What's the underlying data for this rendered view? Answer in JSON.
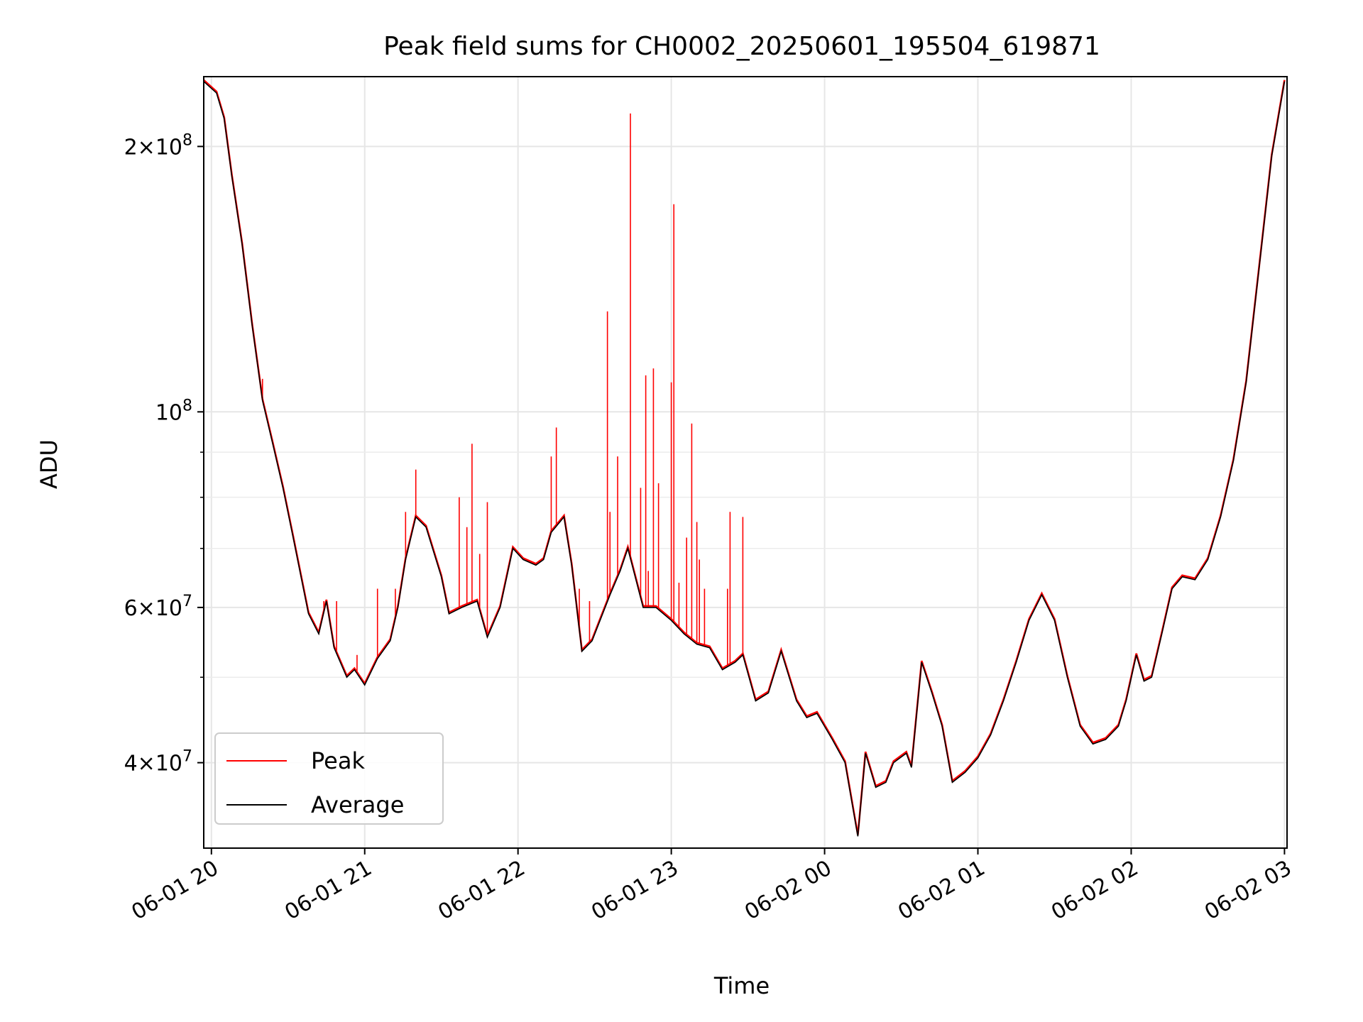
{
  "chart_data": {
    "type": "line",
    "title": "Peak field sums for CH0002_20250601_195504_619871",
    "xlabel": "Time",
    "ylabel": "ADU",
    "yscale": "log",
    "ylim": [
      32000000,
      240000000
    ],
    "xlim": [
      "2025-06-01 19:57",
      "2025-06-02 03:01"
    ],
    "x_ticks": [
      "2025-06-01 20:00",
      "2025-06-01 21:00",
      "2025-06-01 22:00",
      "2025-06-01 23:00",
      "2025-06-02 00:00",
      "2025-06-02 01:00",
      "2025-06-02 02:00",
      "2025-06-02 03:00"
    ],
    "x_tick_labels": [
      "06-01 20",
      "06-01 21",
      "06-01 22",
      "06-01 23",
      "06-02 00",
      "06-02 01",
      "06-02 02",
      "06-02 03"
    ],
    "y_major_ticks": [
      {
        "value": 40000000,
        "mant": "4",
        "exp": "7"
      },
      {
        "value": 60000000,
        "mant": "6",
        "exp": "7"
      },
      {
        "value": 100000000,
        "mant": "",
        "exp": "8"
      },
      {
        "value": 200000000,
        "mant": "2",
        "exp": "8"
      }
    ],
    "y_minor_ticks": [
      50000000,
      70000000,
      80000000,
      90000000
    ],
    "grid": true,
    "legend_position": "lower-left",
    "series": [
      {
        "name": "Average",
        "color": "#000000",
        "x": [
          "2025-06-01 19:57",
          "2025-06-01 20:02",
          "2025-06-01 20:05",
          "2025-06-01 20:08",
          "2025-06-01 20:12",
          "2025-06-01 20:16",
          "2025-06-01 20:20",
          "2025-06-01 20:24",
          "2025-06-01 20:28",
          "2025-06-01 20:32",
          "2025-06-01 20:38",
          "2025-06-01 20:42",
          "2025-06-01 20:45",
          "2025-06-01 20:48",
          "2025-06-01 20:53",
          "2025-06-01 20:56",
          "2025-06-01 21:00",
          "2025-06-01 21:05",
          "2025-06-01 21:10",
          "2025-06-01 21:13",
          "2025-06-01 21:16",
          "2025-06-01 21:20",
          "2025-06-01 21:24",
          "2025-06-01 21:30",
          "2025-06-01 21:33",
          "2025-06-01 21:38",
          "2025-06-01 21:44",
          "2025-06-01 21:48",
          "2025-06-01 21:53",
          "2025-06-01 21:58",
          "2025-06-01 22:02",
          "2025-06-01 22:07",
          "2025-06-01 22:10",
          "2025-06-01 22:13",
          "2025-06-01 22:18",
          "2025-06-01 22:21",
          "2025-06-01 22:25",
          "2025-06-01 22:29",
          "2025-06-01 22:36",
          "2025-06-01 22:40",
          "2025-06-01 22:43",
          "2025-06-01 22:49",
          "2025-06-01 22:54",
          "2025-06-01 23:00",
          "2025-06-01 23:05",
          "2025-06-01 23:10",
          "2025-06-01 23:15",
          "2025-06-01 23:20",
          "2025-06-01 23:25",
          "2025-06-01 23:28",
          "2025-06-01 23:33",
          "2025-06-01 23:38",
          "2025-06-01 23:43",
          "2025-06-01 23:49",
          "2025-06-01 23:53",
          "2025-06-01 23:57",
          "2025-06-02 00:03",
          "2025-06-02 00:08",
          "2025-06-02 00:13",
          "2025-06-02 00:16",
          "2025-06-02 00:20",
          "2025-06-02 00:24",
          "2025-06-02 00:27",
          "2025-06-02 00:32",
          "2025-06-02 00:34",
          "2025-06-02 00:38",
          "2025-06-02 00:42",
          "2025-06-02 00:46",
          "2025-06-02 00:50",
          "2025-06-02 00:55",
          "2025-06-02 01:00",
          "2025-06-02 01:05",
          "2025-06-02 01:10",
          "2025-06-02 01:15",
          "2025-06-02 01:20",
          "2025-06-02 01:25",
          "2025-06-02 01:30",
          "2025-06-02 01:35",
          "2025-06-02 01:40",
          "2025-06-02 01:45",
          "2025-06-02 01:50",
          "2025-06-02 01:55",
          "2025-06-02 01:58",
          "2025-06-02 02:02",
          "2025-06-02 02:05",
          "2025-06-02 02:08",
          "2025-06-02 02:12",
          "2025-06-02 02:16",
          "2025-06-02 02:20",
          "2025-06-02 02:25",
          "2025-06-02 02:30",
          "2025-06-02 02:35",
          "2025-06-02 02:40",
          "2025-06-02 02:45",
          "2025-06-02 02:50",
          "2025-06-02 02:55",
          "2025-06-02 03:00"
        ],
        "values": [
          237000000,
          230000000,
          215000000,
          185000000,
          155000000,
          125000000,
          103000000,
          92000000,
          82000000,
          72000000,
          59000000,
          56000000,
          61000000,
          54000000,
          50000000,
          51000000,
          49000000,
          52500000,
          55000000,
          60000000,
          68000000,
          76000000,
          74000000,
          65000000,
          59000000,
          60000000,
          61000000,
          55500000,
          60000000,
          70000000,
          68000000,
          67000000,
          68000000,
          73000000,
          76000000,
          67000000,
          53500000,
          55000000,
          62000000,
          66000000,
          70000000,
          60000000,
          60000000,
          58000000,
          56000000,
          54500000,
          54000000,
          51000000,
          52000000,
          53000000,
          47000000,
          48000000,
          53500000,
          47000000,
          45000000,
          45500000,
          42500000,
          40000000,
          33000000,
          41000000,
          37500000,
          38000000,
          40000000,
          41000000,
          39500000,
          52000000,
          48000000,
          44000000,
          38000000,
          39000000,
          40500000,
          43000000,
          47000000,
          52000000,
          58000000,
          62000000,
          58000000,
          50000000,
          44000000,
          42000000,
          42500000,
          44000000,
          47000000,
          53000000,
          49500000,
          50000000,
          56000000,
          63000000,
          65000000,
          64500000,
          68000000,
          76000000,
          88000000,
          108000000,
          145000000,
          195000000,
          237000000
        ]
      },
      {
        "name": "Peak",
        "color": "#ff0000",
        "x": [
          "2025-06-01 20:20",
          "2025-06-01 20:44",
          "2025-06-01 20:49",
          "2025-06-01 20:57",
          "2025-06-01 21:05",
          "2025-06-01 21:12",
          "2025-06-01 21:16",
          "2025-06-01 21:20",
          "2025-06-01 21:37",
          "2025-06-01 21:40",
          "2025-06-01 21:42",
          "2025-06-01 21:45",
          "2025-06-01 21:48",
          "2025-06-01 22:13",
          "2025-06-01 22:15",
          "2025-06-01 22:24",
          "2025-06-01 22:28",
          "2025-06-01 22:35",
          "2025-06-01 22:36",
          "2025-06-01 22:39",
          "2025-06-01 22:44",
          "2025-06-01 22:48",
          "2025-06-01 22:50",
          "2025-06-01 22:51",
          "2025-06-01 22:53",
          "2025-06-01 22:55",
          "2025-06-01 23:00",
          "2025-06-01 23:01",
          "2025-06-01 23:03",
          "2025-06-01 23:06",
          "2025-06-01 23:08",
          "2025-06-01 23:10",
          "2025-06-01 23:11",
          "2025-06-01 23:13",
          "2025-06-01 23:22",
          "2025-06-01 23:23",
          "2025-06-01 23:28"
        ],
        "values": [
          109000000,
          61000000,
          61000000,
          53000000,
          63000000,
          63000000,
          77000000,
          86000000,
          80000000,
          74000000,
          92000000,
          69000000,
          79000000,
          89000000,
          96000000,
          63000000,
          61000000,
          130000000,
          77000000,
          89000000,
          218000000,
          82000000,
          110000000,
          66000000,
          112000000,
          83000000,
          108000000,
          172000000,
          64000000,
          72000000,
          97000000,
          75000000,
          68000000,
          63000000,
          63000000,
          77000000,
          76000000
        ]
      }
    ]
  }
}
